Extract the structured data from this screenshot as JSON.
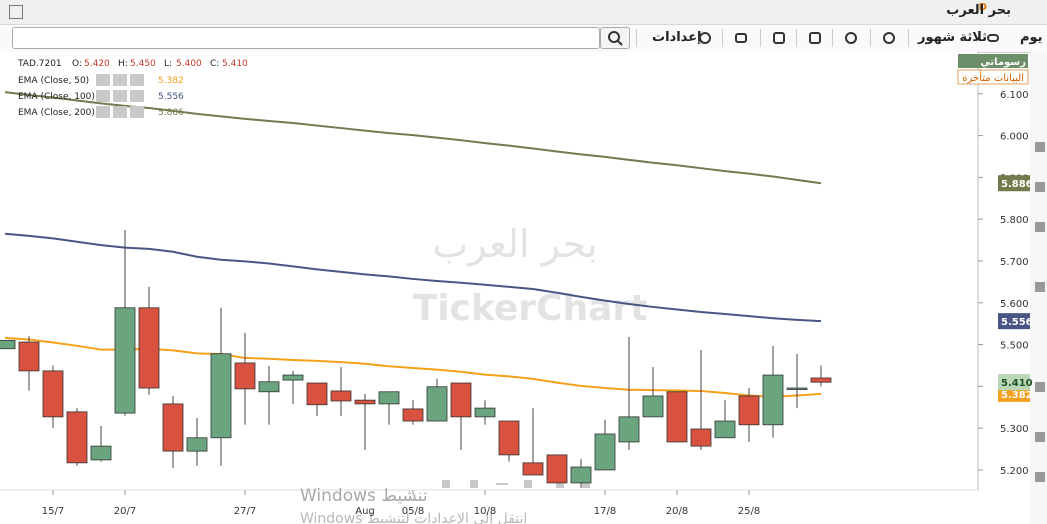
{
  "window": {
    "title": "بحر العرب",
    "badge": "D"
  },
  "toolbar": {
    "interval": "يوم",
    "period": "ثلاثة شهور",
    "settings": "إعدادات"
  },
  "chart_panel": {
    "drawings": "رسوماتي",
    "delayed": "البيانات متأخرة",
    "watermark": {
      "name": "بحر العرب",
      "brand": "TickerChart"
    }
  },
  "chart_data": {
    "type": "candlestick",
    "symbol": "TAD.7201",
    "ohlc_header": [
      {
        "label": "O:",
        "value": "5.420"
      },
      {
        "label": "H:",
        "value": "5.450"
      },
      {
        "label": "L:",
        "value": "5.400"
      },
      {
        "label": "C:",
        "value": "5.410"
      }
    ],
    "close_label": "5.410",
    "categories": [
      null,
      null,
      "15/7",
      null,
      null,
      "20/7",
      null,
      null,
      null,
      null,
      "27/7",
      null,
      null,
      null,
      null,
      "Aug",
      null,
      "05/8",
      null,
      null,
      "10/8",
      null,
      null,
      null,
      null,
      "17/8",
      null,
      null,
      "20/8",
      null,
      null,
      "25/8",
      null,
      null,
      null
    ],
    "open": [
      5.49,
      5.506,
      5.437,
      5.339,
      5.224,
      5.336,
      5.588,
      5.358,
      5.245,
      5.277,
      5.456,
      5.387,
      5.415,
      5.408,
      5.389,
      5.367,
      5.358,
      5.346,
      5.317,
      5.408,
      5.327,
      5.317,
      5.217,
      5.236,
      5.169,
      5.2,
      5.267,
      5.327,
      5.387,
      5.298,
      5.277,
      5.377,
      5.308,
      5.396,
      5.42
    ],
    "high": [
      5.51,
      5.52,
      5.45,
      5.348,
      5.305,
      5.774,
      5.638,
      5.377,
      5.324,
      5.588,
      5.528,
      5.449,
      5.437,
      5.408,
      5.446,
      5.382,
      5.387,
      5.367,
      5.418,
      5.408,
      5.367,
      5.317,
      5.348,
      5.236,
      5.226,
      5.32,
      5.518,
      5.446,
      5.387,
      5.487,
      5.367,
      5.396,
      5.497,
      5.478,
      5.45
    ],
    "low": [
      5.49,
      5.39,
      5.3,
      5.21,
      5.22,
      5.33,
      5.38,
      5.205,
      5.21,
      5.21,
      5.308,
      5.308,
      5.358,
      5.329,
      5.329,
      5.248,
      5.308,
      5.308,
      5.317,
      5.248,
      5.308,
      5.22,
      5.188,
      5.169,
      5.157,
      5.2,
      5.248,
      5.327,
      5.267,
      5.248,
      5.277,
      5.267,
      5.277,
      5.348,
      5.4
    ],
    "close": [
      5.51,
      5.437,
      5.327,
      5.217,
      5.257,
      5.588,
      5.396,
      5.245,
      5.277,
      5.478,
      5.394,
      5.411,
      5.427,
      5.356,
      5.365,
      5.358,
      5.387,
      5.317,
      5.399,
      5.327,
      5.348,
      5.236,
      5.188,
      5.169,
      5.207,
      5.286,
      5.327,
      5.377,
      5.267,
      5.257,
      5.317,
      5.308,
      5.427,
      5.396,
      5.41
    ],
    "up_color": "#6aa57f",
    "down_color": "#d9523f",
    "series": [
      {
        "name": "EMA (Close, 50)",
        "color": "#f5a01a",
        "last_label": "5.382",
        "values": [
          5.516,
          5.512,
          5.505,
          5.497,
          5.488,
          5.488,
          5.49,
          5.486,
          5.479,
          5.477,
          5.468,
          5.466,
          5.463,
          5.461,
          5.458,
          5.454,
          5.448,
          5.444,
          5.44,
          5.435,
          5.428,
          5.424,
          5.418,
          5.409,
          5.401,
          5.396,
          5.392,
          5.391,
          5.39,
          5.389,
          5.384,
          5.378,
          5.375,
          5.378,
          5.382
        ]
      },
      {
        "name": "EMA (Close, 100)",
        "color": "#4a5585",
        "last_label": "5.556",
        "values": [
          5.765,
          5.76,
          5.754,
          5.746,
          5.738,
          5.732,
          5.729,
          5.722,
          5.71,
          5.703,
          5.699,
          5.694,
          5.687,
          5.68,
          5.674,
          5.668,
          5.663,
          5.657,
          5.652,
          5.648,
          5.643,
          5.638,
          5.633,
          5.624,
          5.614,
          5.605,
          5.597,
          5.59,
          5.584,
          5.578,
          5.573,
          5.568,
          5.563,
          5.559,
          5.556
        ]
      },
      {
        "name": "EMA (Close, 200)",
        "color": "#737a4c",
        "last_label": "5.886",
        "values": [
          6.104,
          6.097,
          6.091,
          6.084,
          6.077,
          6.071,
          6.066,
          6.059,
          6.052,
          6.046,
          6.04,
          6.035,
          6.03,
          6.024,
          6.018,
          6.012,
          6.006,
          6.001,
          5.995,
          5.989,
          5.982,
          5.976,
          5.969,
          5.962,
          5.955,
          5.949,
          5.942,
          5.935,
          5.929,
          5.922,
          5.915,
          5.909,
          5.902,
          5.894,
          5.886
        ]
      }
    ],
    "ylim": [
      5.152,
      6.2
    ],
    "yticks": [
      {
        "value": 5.2,
        "label": "5.200"
      },
      {
        "value": 5.3,
        "label": "5.300"
      },
      {
        "value": 5.4,
        "label": "5.400"
      },
      {
        "value": 5.5,
        "label": "5.500"
      },
      {
        "value": 5.6,
        "label": "5.600"
      },
      {
        "value": 5.7,
        "label": "5.700"
      },
      {
        "value": 5.8,
        "label": "5.800"
      },
      {
        "value": 5.9,
        "label": "5.900"
      },
      {
        "value": 6.0,
        "label": "6.000"
      },
      {
        "value": 6.1,
        "label": "6.100"
      }
    ],
    "grid": false
  },
  "os_overlay": {
    "title": "تنشيط Windows",
    "hint": "انتقل إلى الإعدادات لتنشيط Windows"
  }
}
